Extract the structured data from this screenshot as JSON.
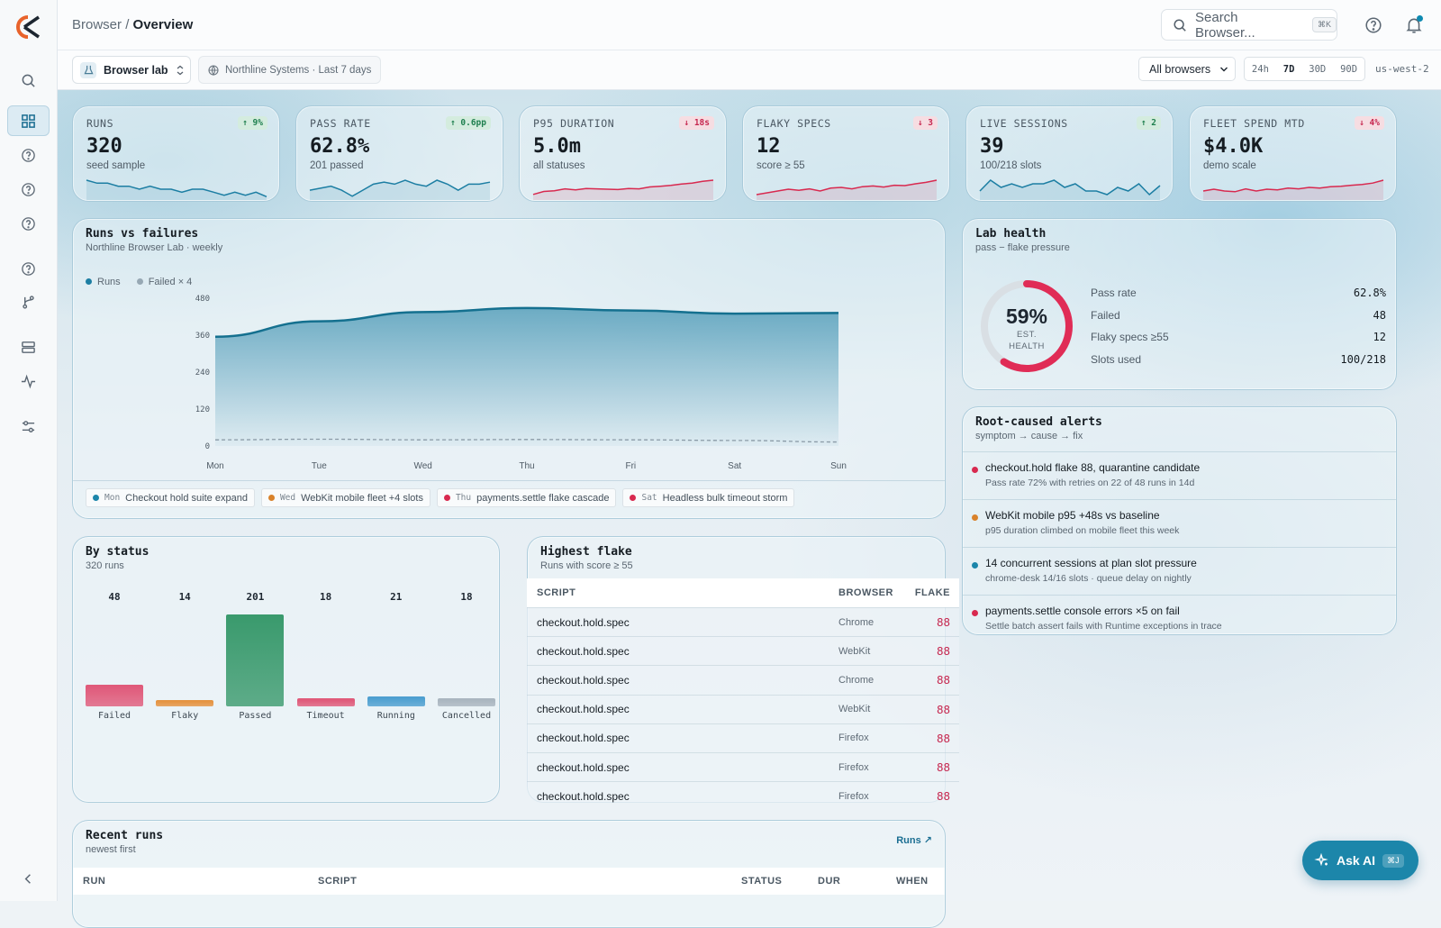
{
  "breadcrumb": {
    "parent": "Browser",
    "current": "Overview"
  },
  "search": {
    "placeholder": "Search Browser...",
    "shortcut": "⌘K"
  },
  "workspace": {
    "name": "Browser lab",
    "scope": "Northline Systems · Last 7 days"
  },
  "filters": {
    "browser": "All browsers",
    "ranges": [
      "24h",
      "7D",
      "30D",
      "90D"
    ],
    "selected_range": "7D",
    "region": "us-west-2"
  },
  "kpis": [
    {
      "label": "RUNS",
      "value": "320",
      "sub": "seed sample",
      "delta": "↑ 9%",
      "trend": "up",
      "spark": [
        6,
        5,
        5,
        4,
        4,
        3,
        4,
        3,
        3,
        2,
        3,
        3,
        2,
        1,
        2,
        1,
        2,
        0.5
      ]
    },
    {
      "label": "PASS RATE",
      "value": "62.8%",
      "sub": "201 passed",
      "delta": "↑ 0.6pp",
      "trend": "up",
      "spark": [
        2,
        2.5,
        3,
        2,
        0.5,
        2,
        3.5,
        4,
        3.5,
        4.5,
        3.5,
        3,
        4.5,
        3.5,
        2,
        3.5,
        3.5,
        4
      ]
    },
    {
      "label": "P95 DURATION",
      "value": "5.0m",
      "sub": "all statuses",
      "delta": "↓ 18s",
      "trend": "down",
      "spark": [
        1,
        1.8,
        2,
        2.5,
        2.2,
        2.6,
        2.5,
        2.4,
        2.3,
        2.6,
        2.5,
        3,
        3.2,
        3.4,
        3.8,
        4,
        4.5,
        4.8
      ]
    },
    {
      "label": "FLAKY SPECS",
      "value": "12",
      "sub": "score ≥ 55",
      "delta": "↓ 3",
      "trend": "down",
      "spark": [
        1,
        1.5,
        2,
        2.5,
        2.2,
        2.6,
        2,
        2.8,
        3,
        2.6,
        3.2,
        3.4,
        3.1,
        3.6,
        3.5,
        4,
        4.4,
        5
      ]
    },
    {
      "label": "LIVE SESSIONS",
      "value": "39",
      "sub": "100/218 slots",
      "delta": "↑ 2",
      "trend": "up",
      "spark": [
        2,
        5,
        3,
        4,
        3,
        4,
        4,
        5,
        3,
        4,
        2,
        2,
        1,
        3,
        2,
        4,
        1,
        3.5
      ]
    },
    {
      "label": "FLEET SPEND MTD",
      "value": "$4.0K",
      "sub": "demo scale",
      "delta": "↓ 4%",
      "trend": "down",
      "spark": [
        2,
        2.5,
        2,
        1.8,
        2.6,
        2,
        2.5,
        2.3,
        2.8,
        2.6,
        3,
        2.8,
        3.2,
        3.3,
        3.6,
        3.8,
        4.2,
        5
      ]
    }
  ],
  "runs_vs_failures": {
    "title": "Runs vs failures",
    "subtitle": "Northline Browser Lab · weekly",
    "legend": [
      "Runs",
      "Failed × 4"
    ],
    "annotations": [
      {
        "day": "Mon",
        "text": "Checkout hold suite expand",
        "color": "#1c86aa"
      },
      {
        "day": "Wed",
        "text": "WebKit mobile fleet +4 slots",
        "color": "#d9822b"
      },
      {
        "day": "Thu",
        "text": "payments.settle flake cascade",
        "color": "#d8294f"
      },
      {
        "day": "Sat",
        "text": "Headless bulk timeout storm",
        "color": "#d8294f"
      }
    ]
  },
  "chart_data": {
    "type": "area",
    "categories": [
      "Mon",
      "Tue",
      "Wed",
      "Thu",
      "Fri",
      "Sat",
      "Sun"
    ],
    "series": [
      {
        "name": "Runs",
        "values": [
          355,
          405,
          435,
          448,
          440,
          430,
          432
        ]
      },
      {
        "name": "Failed × 4",
        "values": [
          20,
          22,
          20,
          21,
          20,
          18,
          13
        ]
      }
    ],
    "ylim": [
      0,
      480
    ],
    "yticks": [
      0,
      120,
      240,
      360,
      480
    ]
  },
  "lab_health": {
    "title": "Lab health",
    "subtitle": "pass − flake pressure",
    "gauge_value": "59%",
    "gauge_fraction": 0.59,
    "gauge_label_1": "EST.",
    "gauge_label_2": "HEALTH",
    "stats": [
      {
        "label": "Pass rate",
        "value": "62.8%"
      },
      {
        "label": "Failed",
        "value": "48"
      },
      {
        "label": "Flaky specs ≥55",
        "value": "12"
      },
      {
        "label": "Slots used",
        "value": "100/218"
      }
    ]
  },
  "alerts": {
    "title": "Root-caused alerts",
    "subtitle": "symptom → cause → fix",
    "items": [
      {
        "title": "checkout.hold flake 88, quarantine candidate",
        "detail": "Pass rate 72% with retries on 22 of 48 runs in 14d",
        "color": "#d8294f"
      },
      {
        "title": "WebKit mobile p95 +48s vs baseline",
        "detail": "p95 duration climbed on mobile fleet this week",
        "color": "#d9822b"
      },
      {
        "title": "14 concurrent sessions at plan slot pressure",
        "detail": "chrome-desk 14/16 slots · queue delay on nightly",
        "color": "#1c86aa"
      },
      {
        "title": "payments.settle console errors ×5 on fail",
        "detail": "Settle batch assert fails with Runtime exceptions in trace",
        "color": "#d8294f"
      }
    ]
  },
  "by_status": {
    "title": "By status",
    "subtitle": "320 runs",
    "bars": [
      {
        "label": "Failed",
        "value": 48,
        "text": "48",
        "color": "#e05a7a"
      },
      {
        "label": "Flaky",
        "value": 14,
        "text": "14",
        "color": "#e59443"
      },
      {
        "label": "Passed",
        "value": 201,
        "text": "201",
        "color": "#3a9a6d"
      },
      {
        "label": "Timeout",
        "value": 18,
        "text": "18",
        "color": "#e05a7a"
      },
      {
        "label": "Running",
        "value": 21,
        "text": "21",
        "color": "#4d9fd0"
      },
      {
        "label": "Cancelled",
        "value": 18,
        "text": "18",
        "color": "#aab6c0"
      }
    ]
  },
  "highest_flake": {
    "title": "Highest flake",
    "subtitle": "Runs with score ≥ 55",
    "columns": [
      "SCRIPT",
      "BROWSER",
      "FLAKE"
    ],
    "rows": [
      {
        "script": "checkout.hold.spec",
        "browser": "Chrome",
        "flake": "88"
      },
      {
        "script": "checkout.hold.spec",
        "browser": "WebKit",
        "flake": "88"
      },
      {
        "script": "checkout.hold.spec",
        "browser": "Chrome",
        "flake": "88"
      },
      {
        "script": "checkout.hold.spec",
        "browser": "WebKit",
        "flake": "88"
      },
      {
        "script": "checkout.hold.spec",
        "browser": "Firefox",
        "flake": "88"
      },
      {
        "script": "checkout.hold.spec",
        "browser": "Firefox",
        "flake": "88"
      },
      {
        "script": "checkout.hold.spec",
        "browser": "Firefox",
        "flake": "88"
      }
    ]
  },
  "recent_runs": {
    "title": "Recent runs",
    "subtitle": "newest first",
    "link": "Runs",
    "columns": [
      "RUN",
      "SCRIPT",
      "STATUS",
      "DUR",
      "WHEN"
    ]
  },
  "ask_ai": {
    "label": "Ask AI",
    "shortcut": "⌘J"
  }
}
